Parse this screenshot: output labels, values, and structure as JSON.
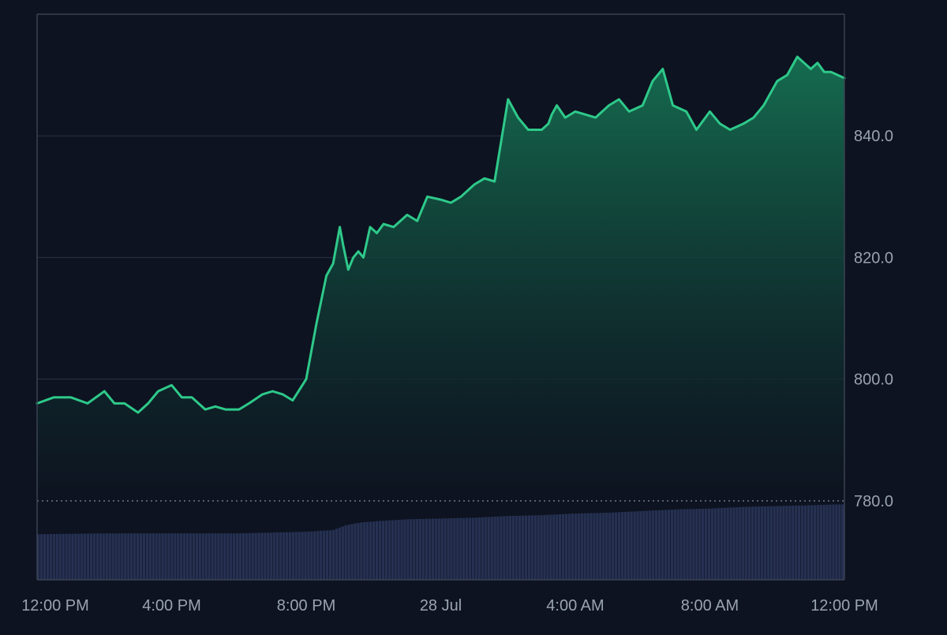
{
  "colors": {
    "background": "#0d1320",
    "line": "#2ec98a",
    "area_top": "#156c4f",
    "area_bottom": "#0d1320",
    "volume": "#263152",
    "grid": "#2a3344",
    "frame": "#3a4252",
    "axis_text": "#9aa3b2",
    "baseline": "#9aa3b2"
  },
  "chart_data": {
    "type": "area",
    "title": "",
    "xlabel": "",
    "ylabel": "",
    "ylim": [
      767,
      860
    ],
    "y_ticks": [
      "780.0",
      "800.0",
      "820.0",
      "840.0"
    ],
    "y_tick_values": [
      780,
      800,
      820,
      840
    ],
    "x_ticks": [
      "12:00 PM",
      "4:00 PM",
      "8:00 PM",
      "28 Jul",
      "4:00 AM",
      "8:00 AM",
      "12:00 PM"
    ],
    "x_tick_hours": [
      0,
      4,
      8,
      12,
      16,
      20,
      24
    ],
    "baseline_value": 780,
    "grid": true,
    "legend": "none",
    "series": [
      {
        "values_x_hours": [
          0,
          0.5,
          1,
          1.5,
          2,
          2.3,
          2.6,
          3,
          3.3,
          3.6,
          4,
          4.3,
          4.6,
          5,
          5.3,
          5.6,
          6,
          6.3,
          6.7,
          7,
          7.3,
          7.6,
          8,
          8.3,
          8.6,
          8.8,
          9.0,
          9.1,
          9.25,
          9.4,
          9.55,
          9.7,
          9.9,
          10.1,
          10.3,
          10.6,
          11,
          11.3,
          11.6,
          12,
          12.3,
          12.6,
          13,
          13.3,
          13.6,
          14,
          14.3,
          14.6,
          15,
          15.2,
          15.3,
          15.45,
          15.7,
          16,
          16.3,
          16.6,
          17,
          17.3,
          17.6,
          18,
          18.3,
          18.6,
          18.9,
          19.3,
          19.6,
          20,
          20.3,
          20.6,
          21,
          21.3,
          21.6,
          22,
          22.3,
          22.6,
          23,
          23.2,
          23.4,
          23.6,
          23.8,
          24
        ],
        "values_y": [
          796,
          797,
          797,
          796,
          798,
          796,
          796,
          794.5,
          796,
          798,
          799,
          797,
          797,
          795,
          795.5,
          795,
          795,
          796,
          797.5,
          798,
          797.5,
          796.5,
          800,
          809,
          817,
          819,
          825,
          822,
          818,
          820,
          821,
          820,
          825,
          824,
          825.5,
          825,
          827,
          826,
          830,
          829.5,
          829,
          830,
          832,
          833,
          832.5,
          846,
          843,
          841,
          841,
          842,
          843.5,
          845,
          843,
          844,
          843.5,
          843,
          845,
          846,
          844,
          845,
          849,
          851,
          845,
          844,
          841,
          844,
          842,
          841,
          842,
          843,
          845,
          849,
          850,
          853,
          851,
          852,
          850.5,
          850.5,
          850,
          849.5
        ],
        "volume_x_hours": [
          0,
          2,
          4,
          6,
          8,
          8.8,
          9.2,
          9.6,
          10.2,
          11,
          12,
          13,
          14,
          15,
          16,
          17,
          18,
          19,
          20,
          21,
          22,
          23,
          23.8,
          24
        ],
        "volume_norm": [
          0.55,
          0.56,
          0.56,
          0.56,
          0.58,
          0.6,
          0.66,
          0.69,
          0.71,
          0.73,
          0.74,
          0.75,
          0.77,
          0.78,
          0.8,
          0.81,
          0.83,
          0.85,
          0.86,
          0.88,
          0.89,
          0.9,
          0.91,
          0.91
        ]
      }
    ]
  }
}
